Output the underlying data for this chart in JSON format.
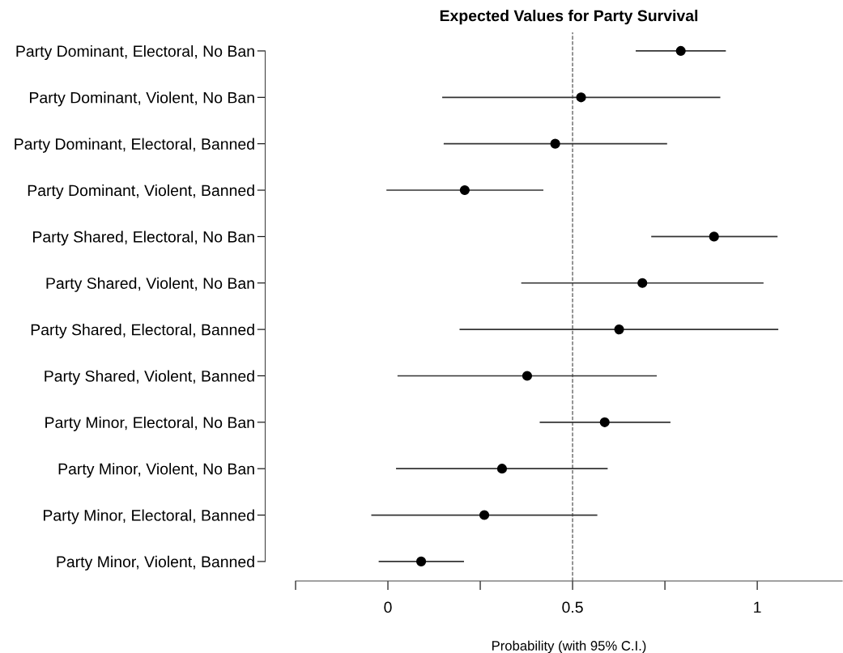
{
  "chart_data": {
    "type": "scatter",
    "orientation": "horizontal",
    "title": "Expected Values for Party Survival",
    "xlabel": "Probability (with 95% C.I.)",
    "categories": [
      "Party Dominant, Electoral, No Ban",
      "Party Dominant, Violent, No Ban",
      "Party Dominant, Electoral, Banned",
      "Party Dominant, Violent, Banned",
      "Party Shared, Electoral, No Ban",
      "Party Shared, Violent, No Ban",
      "Party Shared, Electoral, Banned",
      "Party Shared, Violent, Banned",
      "Party Minor, Electoral, No Ban",
      "Party Minor, Violent, No Ban",
      "Party Minor, Electoral, Banned",
      "Party Minor, Violent, Banned"
    ],
    "values": [
      0.793,
      0.523,
      0.453,
      0.208,
      0.883,
      0.689,
      0.626,
      0.377,
      0.587,
      0.309,
      0.261,
      0.09
    ],
    "errors": [
      [
        0.671,
        0.915
      ],
      [
        0.147,
        0.9
      ],
      [
        0.151,
        0.756
      ],
      [
        -0.004,
        0.421
      ],
      [
        0.713,
        1.055
      ],
      [
        0.361,
        1.017
      ],
      [
        0.194,
        1.057
      ],
      [
        0.026,
        0.728
      ],
      [
        0.411,
        0.765
      ],
      [
        0.022,
        0.595
      ],
      [
        -0.045,
        0.567
      ],
      [
        -0.025,
        0.206
      ]
    ],
    "color": "#000000",
    "marker": "circle",
    "grid": false,
    "legend": false,
    "xlim": [
      -0.25,
      1.23
    ],
    "xticks": [
      {
        "value": -0.25,
        "label": null
      },
      0,
      {
        "value": 0.25,
        "label": null
      },
      0.5,
      {
        "value": 0.75,
        "label": null
      },
      1
    ],
    "ref_lines": [
      {
        "axis": "x",
        "value": 0.5,
        "label": null,
        "color": "#555555",
        "line_style": "dashed"
      }
    ]
  }
}
